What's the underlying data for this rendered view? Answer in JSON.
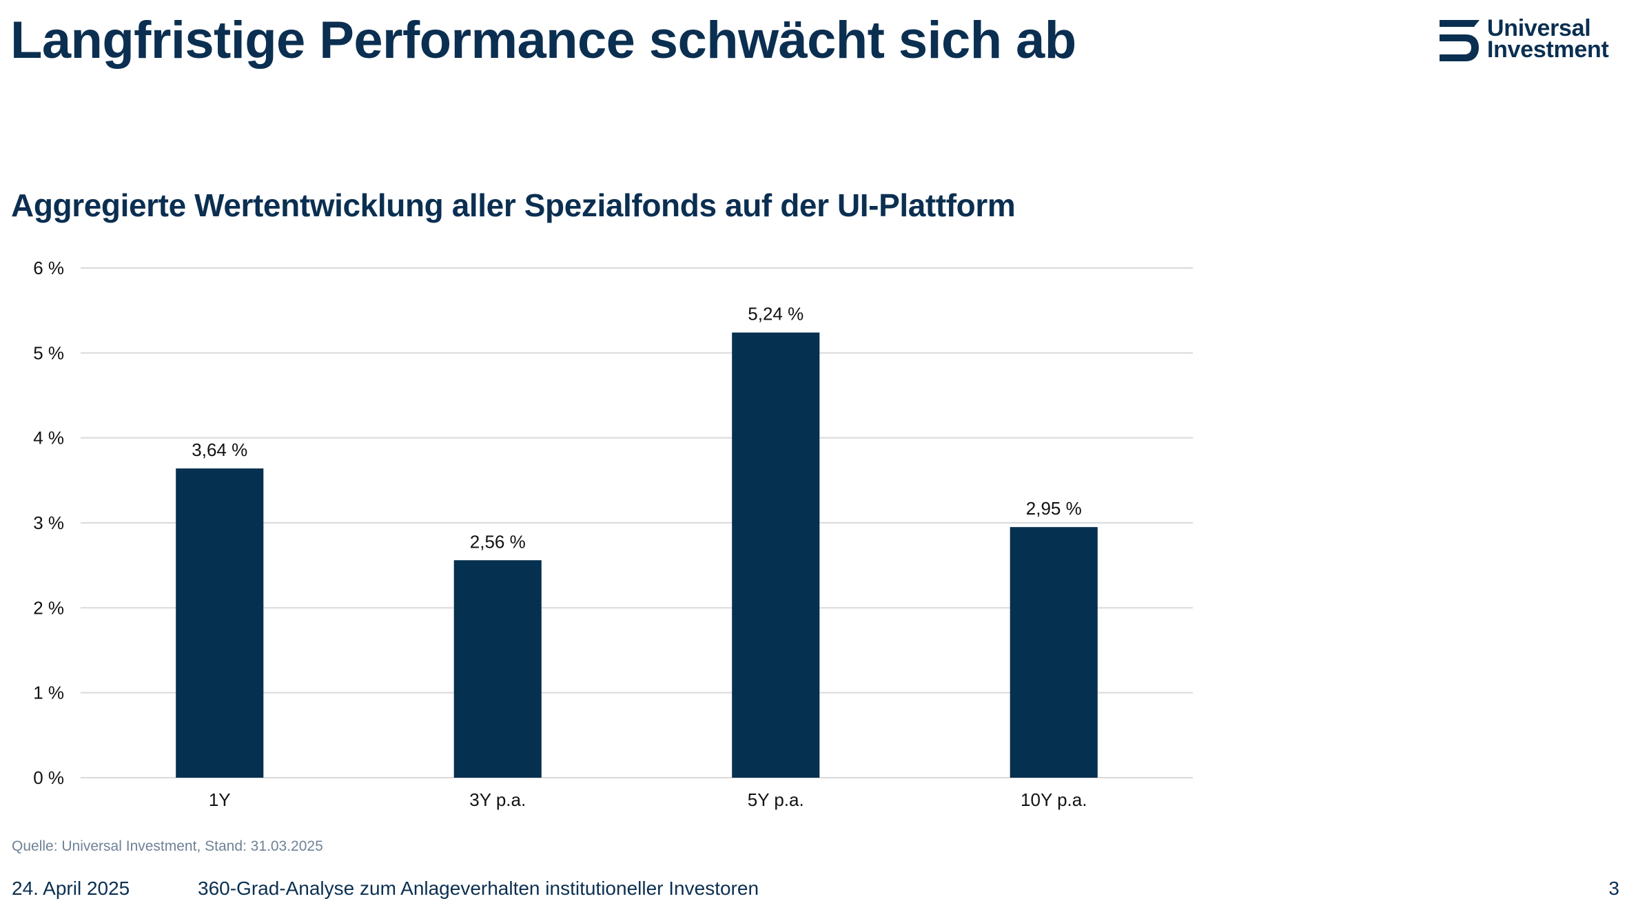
{
  "header": {
    "title": "Langfristige Performance schwächt sich ab",
    "logo": {
      "icon": "universal-investment-logo-icon",
      "line1": "Universal",
      "line2": "Investment"
    }
  },
  "colors": {
    "brand": "#0b2f51",
    "bar": "#06304f",
    "grid": "#d9d9d9",
    "source_text": "#6f8296"
  },
  "chart_data": {
    "type": "bar",
    "title": "Aggregierte Wertentwicklung aller Spezialfonds auf der UI-Plattform",
    "xlabel": "",
    "ylabel": "",
    "categories": [
      "1Y",
      "3Y p.a.",
      "5Y p.a.",
      "10Y p.a."
    ],
    "values": [
      3.64,
      2.56,
      5.24,
      2.95
    ],
    "data_labels": [
      "3,64 %",
      "2,56 %",
      "5,24 %",
      "2,95 %"
    ],
    "ylim": [
      0,
      6
    ],
    "yticks": [
      0,
      1,
      2,
      3,
      4,
      5,
      6
    ],
    "ytick_labels": [
      "0 %",
      "1 %",
      "2 %",
      "3 %",
      "4 %",
      "5 %",
      "6 %"
    ],
    "grid": true,
    "legend": "none",
    "unit": "%"
  },
  "source": "Quelle: Universal Investment, Stand: 31.03.2025",
  "footer": {
    "date": "24. April 2025",
    "title": "360-Grad-Analyse zum Anlageverhalten institutioneller Investoren",
    "page_number": "3"
  }
}
